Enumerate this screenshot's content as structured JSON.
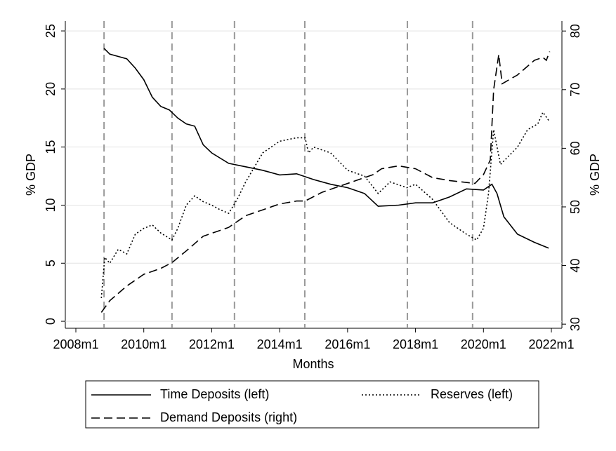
{
  "chart_data": {
    "type": "line",
    "xlabel": "Months",
    "ylabel": "% GDP",
    "y2label": "% GDP",
    "xlim": [
      2007.69,
      2022.31
    ],
    "xticks": [
      {
        "value": 2008,
        "label": "2008m1"
      },
      {
        "value": 2010,
        "label": "2010m1"
      },
      {
        "value": 2012,
        "label": "2012m1"
      },
      {
        "value": 2014,
        "label": "2014m1"
      },
      {
        "value": 2016,
        "label": "2016m1"
      },
      {
        "value": 2018,
        "label": "2018m1"
      },
      {
        "value": 2020,
        "label": "2020m1"
      },
      {
        "value": 2022,
        "label": "2022m1"
      }
    ],
    "ylim": [
      -0.6,
      25.85
    ],
    "yticks": [
      0,
      5,
      10,
      15,
      20,
      25
    ],
    "y2lim": [
      29.3,
      81.7
    ],
    "y2ticks": [
      30,
      40,
      50,
      60,
      70,
      80
    ],
    "grid": true,
    "vlines": [
      2008.83,
      2010.83,
      2012.67,
      2014.74,
      2017.76,
      2019.68
    ],
    "series": [
      {
        "name": "Time Deposits (left)",
        "color": "#000000",
        "line_style": "solid",
        "axis": "y",
        "x": [
          2008.83,
          2009.0,
          2009.25,
          2009.5,
          2009.75,
          2010.0,
          2010.25,
          2010.5,
          2010.75,
          2011.0,
          2011.25,
          2011.5,
          2011.75,
          2012.0,
          2012.5,
          2013.0,
          2013.5,
          2014.0,
          2014.5,
          2015.0,
          2015.5,
          2016.0,
          2016.5,
          2016.9,
          2017.5,
          2018.0,
          2018.5,
          2019.0,
          2019.5,
          2020.0,
          2020.25,
          2020.4,
          2020.6,
          2021.0,
          2021.5,
          2021.92
        ],
        "values": [
          23.5,
          23.0,
          22.8,
          22.6,
          21.8,
          20.8,
          19.3,
          18.5,
          18.2,
          17.5,
          17.0,
          16.8,
          15.2,
          14.5,
          13.6,
          13.3,
          13.0,
          12.6,
          12.7,
          12.2,
          11.8,
          11.5,
          11.0,
          9.9,
          10.0,
          10.2,
          10.2,
          10.7,
          11.4,
          11.3,
          11.8,
          11.0,
          9.0,
          7.5,
          6.8,
          6.3
        ]
      },
      {
        "name": "Reserves (left)",
        "color": "#000000",
        "line_style": "dot",
        "axis": "y",
        "x": [
          2008.75,
          2008.85,
          2009.0,
          2009.25,
          2009.5,
          2009.75,
          2010.0,
          2010.25,
          2010.5,
          2010.83,
          2011.0,
          2011.25,
          2011.5,
          2011.75,
          2012.0,
          2012.25,
          2012.5,
          2012.75,
          2013.0,
          2013.5,
          2014.0,
          2014.5,
          2014.75,
          2014.85,
          2015.0,
          2015.5,
          2016.0,
          2016.5,
          2016.9,
          2017.25,
          2017.75,
          2018.0,
          2018.5,
          2019.0,
          2019.5,
          2019.8,
          2020.0,
          2020.15,
          2020.3,
          2020.5,
          2021.0,
          2021.3,
          2021.6,
          2021.75,
          2021.92
        ],
        "values": [
          2.0,
          5.5,
          5.0,
          6.2,
          5.8,
          7.5,
          8.0,
          8.3,
          7.6,
          7.0,
          8.0,
          10.0,
          10.8,
          10.3,
          10.0,
          9.6,
          9.3,
          10.5,
          12.0,
          14.5,
          15.5,
          15.8,
          15.8,
          14.5,
          15.0,
          14.5,
          13.0,
          12.5,
          11.0,
          12.0,
          11.5,
          11.8,
          10.5,
          8.5,
          7.5,
          7.0,
          8.0,
          11.0,
          16.5,
          13.5,
          15.0,
          16.5,
          17.0,
          18.0,
          17.3
        ]
      },
      {
        "name": "Demand Deposits (right)",
        "color": "#000000",
        "line_style": "dash",
        "axis": "y2",
        "x": [
          2008.75,
          2009.0,
          2009.5,
          2010.0,
          2010.5,
          2010.83,
          2011.25,
          2011.75,
          2012.0,
          2012.5,
          2013.0,
          2013.5,
          2014.0,
          2014.5,
          2014.75,
          2015.25,
          2015.75,
          2016.25,
          2016.75,
          2017.0,
          2017.5,
          2018.0,
          2018.5,
          2019.0,
          2019.75,
          2020.0,
          2020.2,
          2020.3,
          2020.45,
          2020.55,
          2021.0,
          2021.5,
          2021.75,
          2021.85,
          2021.95
        ],
        "values": [
          32,
          34,
          36.5,
          38.5,
          39.5,
          40.5,
          42.5,
          45,
          45.5,
          46.5,
          48.5,
          49.5,
          50.5,
          51,
          51,
          52.5,
          53.5,
          54.5,
          55.5,
          56.5,
          57,
          56.5,
          55,
          54.5,
          54,
          55.5,
          58,
          70,
          76,
          71,
          72.5,
          75,
          75.5,
          75,
          76.5
        ]
      }
    ]
  }
}
